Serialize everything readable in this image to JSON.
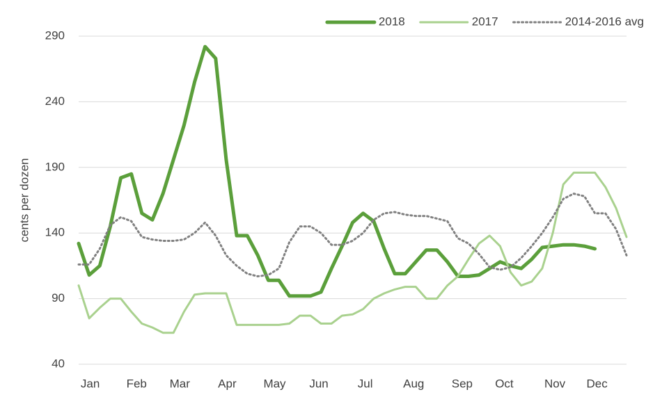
{
  "chart_data": {
    "type": "line",
    "y_label": "cents per dozen",
    "x": [
      0,
      1,
      2,
      3,
      4,
      5,
      6,
      7,
      8,
      9,
      10,
      11,
      12,
      13,
      14,
      15,
      16,
      17,
      18,
      19,
      20,
      21,
      22,
      23,
      24,
      25,
      26,
      27,
      28,
      29,
      30,
      31,
      32,
      33,
      34,
      35,
      36,
      37,
      38,
      39,
      40,
      41,
      42,
      43,
      44,
      45,
      46,
      47,
      48,
      49,
      50,
      51,
      52
    ],
    "xlim": [
      0,
      52
    ],
    "xticks": [
      {
        "value": 1.1,
        "label": "Jan"
      },
      {
        "value": 5.5,
        "label": "Feb"
      },
      {
        "value": 9.6,
        "label": "Mar"
      },
      {
        "value": 14.1,
        "label": "Apr"
      },
      {
        "value": 18.6,
        "label": "May"
      },
      {
        "value": 22.8,
        "label": "Jun"
      },
      {
        "value": 27.2,
        "label": "Jul"
      },
      {
        "value": 31.8,
        "label": "Aug"
      },
      {
        "value": 36.4,
        "label": "Sep"
      },
      {
        "value": 40.4,
        "label": "Oct"
      },
      {
        "value": 45.2,
        "label": "Nov"
      },
      {
        "value": 49.2,
        "label": "Dec"
      }
    ],
    "ylim": [
      40,
      290
    ],
    "yticks": [
      40,
      90,
      140,
      190,
      240,
      290
    ],
    "grid": true,
    "legend": "top-right",
    "series": [
      {
        "name": "2018",
        "color": "#5b9f3b",
        "style": "solid",
        "values": [
          132,
          108,
          115,
          145,
          182,
          185,
          155,
          150,
          170,
          196,
          222,
          255,
          282,
          273,
          196,
          138,
          138,
          123,
          104,
          104,
          92,
          92,
          92,
          95,
          113,
          130,
          148,
          155,
          149,
          128,
          109,
          109,
          118,
          127,
          127,
          118,
          107,
          107,
          108,
          113,
          118,
          115,
          113,
          120,
          129,
          130,
          131,
          131,
          130,
          128,
          null,
          null,
          null
        ]
      },
      {
        "name": "2017",
        "color": "#a9d18e",
        "style": "solid",
        "values": [
          100,
          75,
          83,
          90,
          90,
          80,
          71,
          68,
          64,
          64,
          80,
          93,
          94,
          94,
          94,
          70,
          70,
          70,
          70,
          70,
          71,
          77,
          77,
          71,
          71,
          77,
          78,
          82,
          90,
          94,
          97,
          99,
          99,
          90,
          90,
          100,
          107,
          120,
          132,
          138,
          130,
          110,
          100,
          103,
          113,
          140,
          177,
          186,
          186,
          186,
          175,
          159,
          137
        ]
      },
      {
        "name": "2014-2016 avg",
        "color": "#808080",
        "style": "dotted",
        "values": [
          116,
          116,
          128,
          146,
          152,
          149,
          137,
          135,
          134,
          134,
          135,
          140,
          148,
          138,
          123,
          115,
          109,
          107,
          108,
          113,
          133,
          145,
          145,
          140,
          131,
          131,
          134,
          140,
          150,
          155,
          156,
          154,
          153,
          153,
          151,
          149,
          136,
          132,
          124,
          114,
          112,
          114,
          121,
          130,
          140,
          152,
          166,
          170,
          168,
          155,
          155,
          143,
          123
        ]
      }
    ]
  }
}
